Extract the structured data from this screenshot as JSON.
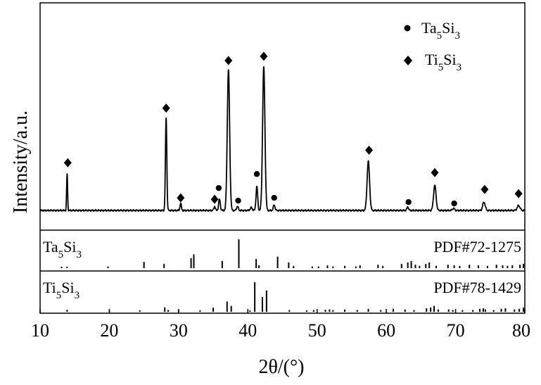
{
  "chart_data": {
    "type": "line",
    "title": "",
    "xlabel": "2θ/(°)",
    "ylabel": "Intensity/a.u.",
    "xlim": [
      10,
      80
    ],
    "xticks": [
      10,
      20,
      30,
      40,
      50,
      60,
      70,
      80
    ],
    "grid": false,
    "legend": {
      "placement": "top-right",
      "entries": [
        {
          "marker": "circle",
          "label_main": "Ta",
          "sub1": "5",
          "label_mid": "Si",
          "sub2": "3"
        },
        {
          "marker": "diamond",
          "label_main": "Ti",
          "sub1": "5",
          "label_mid": "Si",
          "sub2": "3"
        }
      ]
    },
    "pattern": {
      "baseline": 1.0,
      "peaks": [
        {
          "x": 13.9,
          "y": 26,
          "w": 0.07
        },
        {
          "x": 28.2,
          "y": 66,
          "w": 0.1
        },
        {
          "x": 30.3,
          "y": 5,
          "w": 0.1
        },
        {
          "x": 35.2,
          "y": 3,
          "w": 0.1
        },
        {
          "x": 35.9,
          "y": 8,
          "w": 0.12
        },
        {
          "x": 37.2,
          "y": 100,
          "w": 0.17
        },
        {
          "x": 38.5,
          "y": 3,
          "w": 0.12
        },
        {
          "x": 40.5,
          "y": 2,
          "w": 0.15
        },
        {
          "x": 41.3,
          "y": 17,
          "w": 0.12
        },
        {
          "x": 42.3,
          "y": 102,
          "w": 0.17
        },
        {
          "x": 43.8,
          "y": 4,
          "w": 0.12
        },
        {
          "x": 57.4,
          "y": 35,
          "w": 0.18
        },
        {
          "x": 63.1,
          "y": 2.5,
          "w": 0.12
        },
        {
          "x": 67.0,
          "y": 18,
          "w": 0.18
        },
        {
          "x": 69.7,
          "y": 1.5,
          "w": 0.15
        },
        {
          "x": 74.1,
          "y": 6,
          "w": 0.18
        },
        {
          "x": 79.1,
          "y": 3.5,
          "w": 0.2
        }
      ],
      "ymax": 110
    },
    "annotations": [
      {
        "marker": "diamond",
        "x": 14.0,
        "y": 34
      },
      {
        "marker": "diamond",
        "x": 28.2,
        "y": 73
      },
      {
        "marker": "diamond",
        "x": 30.3,
        "y": 9
      },
      {
        "marker": "diamond",
        "x": 35.2,
        "y": 8
      },
      {
        "marker": "circle",
        "x": 35.8,
        "y": 16
      },
      {
        "marker": "diamond",
        "x": 37.2,
        "y": 107
      },
      {
        "marker": "circle",
        "x": 38.6,
        "y": 7
      },
      {
        "marker": "circle",
        "x": 41.3,
        "y": 26
      },
      {
        "marker": "diamond",
        "x": 42.3,
        "y": 110
      },
      {
        "marker": "circle",
        "x": 43.8,
        "y": 9
      },
      {
        "marker": "diamond",
        "x": 57.5,
        "y": 43
      },
      {
        "marker": "circle",
        "x": 63.2,
        "y": 6
      },
      {
        "marker": "diamond",
        "x": 67.0,
        "y": 27
      },
      {
        "marker": "circle",
        "x": 69.8,
        "y": 5
      },
      {
        "marker": "diamond",
        "x": 74.2,
        "y": 15
      },
      {
        "marker": "diamond",
        "x": 79.1,
        "y": 12
      }
    ],
    "reference_panels": [
      {
        "phase_main": "Ta",
        "sub1": "5",
        "phase_mid": "Si",
        "sub2": "3",
        "pdf": "PDF#72-1275",
        "lines": [
          [
            13.1,
            0.05
          ],
          [
            13.9,
            0.05
          ],
          [
            19.8,
            0.06
          ],
          [
            25.0,
            0.22
          ],
          [
            27.9,
            0.15
          ],
          [
            31.8,
            0.35
          ],
          [
            32.2,
            0.48
          ],
          [
            36.3,
            0.25
          ],
          [
            38.7,
            1.0
          ],
          [
            41.2,
            0.32
          ],
          [
            41.6,
            0.1
          ],
          [
            44.3,
            0.4
          ],
          [
            45.9,
            0.2
          ],
          [
            46.6,
            0.08
          ],
          [
            49.3,
            0.06
          ],
          [
            50.2,
            0.06
          ],
          [
            51.5,
            0.1
          ],
          [
            52.3,
            0.06
          ],
          [
            54.0,
            0.08
          ],
          [
            55.6,
            0.06
          ],
          [
            56.2,
            0.1
          ],
          [
            58.8,
            0.12
          ],
          [
            59.5,
            0.08
          ],
          [
            62.2,
            0.15
          ],
          [
            63.1,
            0.2
          ],
          [
            63.6,
            0.25
          ],
          [
            64.2,
            0.12
          ],
          [
            64.8,
            0.08
          ],
          [
            65.7,
            0.15
          ],
          [
            66.2,
            0.2
          ],
          [
            67.2,
            0.08
          ],
          [
            68.9,
            0.12
          ],
          [
            69.8,
            0.1
          ],
          [
            70.6,
            0.08
          ],
          [
            72.0,
            0.12
          ],
          [
            73.3,
            0.1
          ],
          [
            74.6,
            0.08
          ],
          [
            75.9,
            0.12
          ],
          [
            76.8,
            0.1
          ],
          [
            77.5,
            0.08
          ],
          [
            78.2,
            0.1
          ],
          [
            79.3,
            0.12
          ],
          [
            79.8,
            0.15
          ]
        ]
      },
      {
        "phase_main": "Ti",
        "sub1": "5",
        "phase_mid": "Si",
        "sub2": "3",
        "pdf": "PDF#78-1429",
        "lines": [
          [
            13.9,
            0.07
          ],
          [
            20.0,
            0.04
          ],
          [
            24.4,
            0.05
          ],
          [
            28.0,
            0.15
          ],
          [
            28.5,
            0.06
          ],
          [
            30.0,
            0.05
          ],
          [
            33.1,
            0.05
          ],
          [
            35.0,
            0.14
          ],
          [
            37.0,
            0.35
          ],
          [
            37.6,
            0.2
          ],
          [
            40.3,
            0.05
          ],
          [
            41.0,
            1.0
          ],
          [
            42.1,
            0.5
          ],
          [
            42.7,
            0.72
          ],
          [
            46.0,
            0.06
          ],
          [
            48.5,
            0.05
          ],
          [
            49.5,
            0.06
          ],
          [
            51.2,
            0.07
          ],
          [
            51.8,
            0.08
          ],
          [
            52.3,
            0.06
          ],
          [
            54.0,
            0.08
          ],
          [
            55.8,
            0.06
          ],
          [
            57.4,
            0.1
          ],
          [
            59.2,
            0.06
          ],
          [
            61.0,
            0.1
          ],
          [
            62.7,
            0.08
          ],
          [
            64.0,
            0.06
          ],
          [
            65.8,
            0.12
          ],
          [
            66.4,
            0.15
          ],
          [
            66.9,
            0.2
          ],
          [
            67.5,
            0.08
          ],
          [
            69.0,
            0.08
          ],
          [
            69.6,
            0.06
          ],
          [
            71.0,
            0.06
          ],
          [
            72.5,
            0.06
          ],
          [
            73.5,
            0.1
          ],
          [
            74.0,
            0.12
          ],
          [
            74.3,
            0.08
          ],
          [
            75.5,
            0.06
          ],
          [
            76.6,
            0.1
          ],
          [
            77.2,
            0.12
          ],
          [
            78.5,
            0.08
          ],
          [
            79.2,
            0.1
          ],
          [
            79.8,
            0.14
          ]
        ]
      }
    ]
  }
}
